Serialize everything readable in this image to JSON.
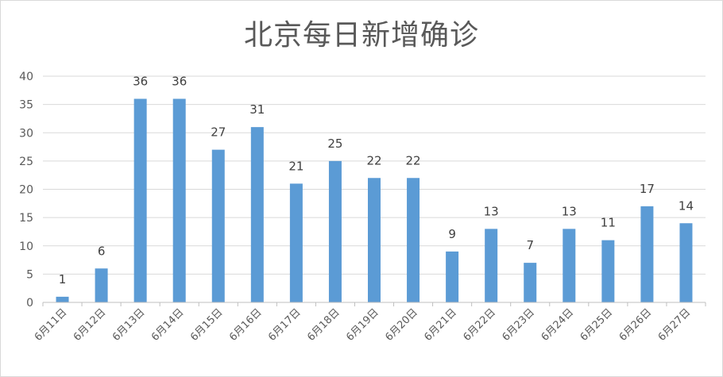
{
  "chart_data": {
    "type": "bar",
    "title": "北京每日新增确诊",
    "xlabel": "",
    "ylabel": "",
    "ylim": [
      0,
      40
    ],
    "yticks": [
      0,
      5,
      10,
      15,
      20,
      25,
      30,
      35,
      40
    ],
    "grid": true,
    "legend": "none",
    "bar_color": "#5b9bd5",
    "categories": [
      "6月11日",
      "6月12日",
      "6月13日",
      "6月14日",
      "6月15日",
      "6月16日",
      "6月17日",
      "6月18日",
      "6月19日",
      "6月20日",
      "6月21日",
      "6月22日",
      "6月23日",
      "6月24日",
      "6月25日",
      "6月26日",
      "6月27日"
    ],
    "values": [
      1,
      6,
      36,
      36,
      27,
      31,
      21,
      25,
      22,
      22,
      9,
      13,
      7,
      13,
      11,
      17,
      14
    ]
  }
}
